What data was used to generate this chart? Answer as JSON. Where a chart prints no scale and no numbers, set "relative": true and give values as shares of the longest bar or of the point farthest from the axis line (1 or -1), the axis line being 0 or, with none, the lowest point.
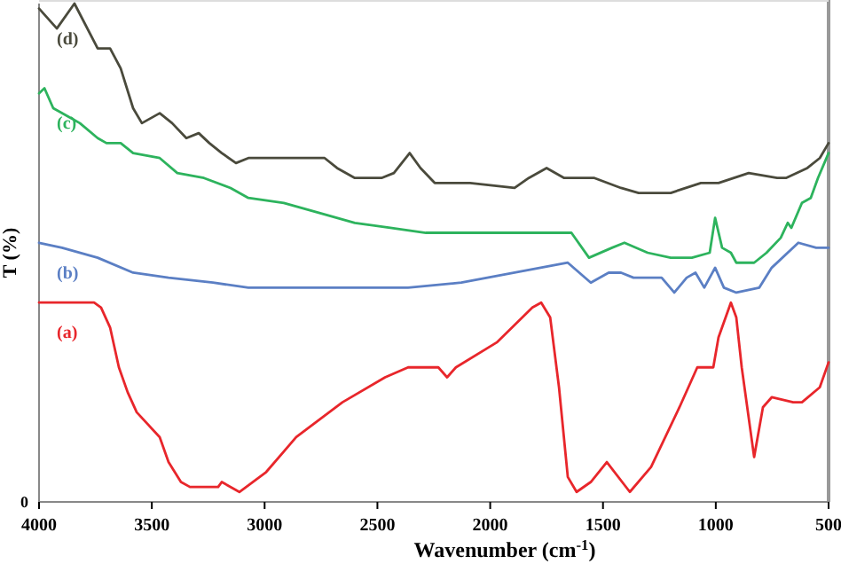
{
  "chart_data": {
    "type": "line",
    "xlabel": "Wavenumber (cm$^{-1}$)",
    "ylabel": "T (%)",
    "relative": true,
    "xlim": [
      4000,
      500
    ],
    "xticks": [
      4000,
      3500,
      3000,
      2500,
      2000,
      1500,
      1000,
      500
    ],
    "annotations": [
      "0"
    ],
    "series": [
      {
        "name": "(d)",
        "color": "#4a4a3c",
        "x": [
          4000,
          3921,
          3843,
          3740,
          3685,
          3638,
          3583,
          3544,
          3465,
          3410,
          3347,
          3292,
          3245,
          3190,
          3127,
          3072,
          2915,
          2734,
          2679,
          2600,
          2482,
          2427,
          2357,
          2309,
          2246,
          2089,
          1892,
          1829,
          1750,
          1672,
          1538,
          1420,
          1342,
          1200,
          1066,
          988,
          854,
          728,
          689,
          594,
          539,
          500
        ],
        "values": [
          0.99,
          0.95,
          1,
          0.91,
          0.91,
          0.87,
          0.79,
          0.76,
          0.78,
          0.76,
          0.73,
          0.74,
          0.72,
          0.7,
          0.68,
          0.69,
          0.69,
          0.69,
          0.67,
          0.65,
          0.65,
          0.66,
          0.7,
          0.67,
          0.64,
          0.64,
          0.63,
          0.65,
          0.67,
          0.65,
          0.65,
          0.63,
          0.62,
          0.62,
          0.64,
          0.64,
          0.66,
          0.65,
          0.65,
          0.67,
          0.69,
          0.72
        ]
      },
      {
        "name": "(c)",
        "color": "#2db35d",
        "x": [
          4000,
          3976,
          3937,
          3858,
          3819,
          3740,
          3701,
          3638,
          3583,
          3465,
          3387,
          3269,
          3151,
          3072,
          2915,
          2757,
          2600,
          2443,
          2285,
          1994,
          1814,
          1656,
          1640,
          1562,
          1460,
          1405,
          1302,
          1200,
          1106,
          1027,
          1003,
          972,
          933,
          909,
          830,
          775,
          712,
          681,
          665,
          618,
          579,
          547,
          500
        ],
        "values": [
          0.82,
          0.83,
          0.79,
          0.77,
          0.76,
          0.73,
          0.72,
          0.72,
          0.7,
          0.69,
          0.66,
          0.65,
          0.63,
          0.61,
          0.6,
          0.58,
          0.56,
          0.55,
          0.54,
          0.54,
          0.54,
          0.54,
          0.54,
          0.49,
          0.51,
          0.52,
          0.5,
          0.49,
          0.49,
          0.5,
          0.57,
          0.51,
          0.5,
          0.48,
          0.48,
          0.5,
          0.53,
          0.56,
          0.55,
          0.6,
          0.61,
          0.65,
          0.7
        ]
      },
      {
        "name": "(b)",
        "color": "#5b7fc4",
        "x": [
          4000,
          3898,
          3740,
          3583,
          3426,
          3229,
          3072,
          2915,
          2364,
          2128,
          1892,
          1656,
          1554,
          1475,
          1420,
          1365,
          1287,
          1240,
          1184,
          1129,
          1090,
          1051,
          1003,
          964,
          909,
          807,
          752,
          634,
          555,
          500
        ],
        "values": [
          0.52,
          0.51,
          0.49,
          0.46,
          0.45,
          0.44,
          0.43,
          0.43,
          0.43,
          0.44,
          0.46,
          0.48,
          0.44,
          0.46,
          0.46,
          0.45,
          0.45,
          0.45,
          0.42,
          0.45,
          0.46,
          0.43,
          0.47,
          0.43,
          0.42,
          0.43,
          0.47,
          0.52,
          0.51,
          0.51
        ]
      },
      {
        "name": "(a)",
        "color": "#e8262b",
        "x": [
          4000,
          3756,
          3725,
          3685,
          3646,
          3607,
          3567,
          3465,
          3426,
          3371,
          3331,
          3206,
          3190,
          3112,
          2993,
          2860,
          2655,
          2466,
          2364,
          2230,
          2191,
          2152,
          1971,
          1813,
          1774,
          1734,
          1695,
          1656,
          1617,
          1554,
          1483,
          1381,
          1287,
          1161,
          1082,
          1011,
          988,
          933,
          909,
          885,
          830,
          791,
          752,
          657,
          618,
          539,
          500
        ],
        "values": [
          0.4,
          0.4,
          0.39,
          0.35,
          0.27,
          0.22,
          0.18,
          0.13,
          0.08,
          0.04,
          0.03,
          0.03,
          0.04,
          0.02,
          0.06,
          0.13,
          0.2,
          0.25,
          0.27,
          0.27,
          0.25,
          0.27,
          0.32,
          0.39,
          0.4,
          0.37,
          0.23,
          0.05,
          0.02,
          0.04,
          0.08,
          0.02,
          0.07,
          0.19,
          0.27,
          0.27,
          0.33,
          0.4,
          0.37,
          0.27,
          0.09,
          0.19,
          0.21,
          0.2,
          0.2,
          0.23,
          0.28
        ]
      }
    ]
  }
}
